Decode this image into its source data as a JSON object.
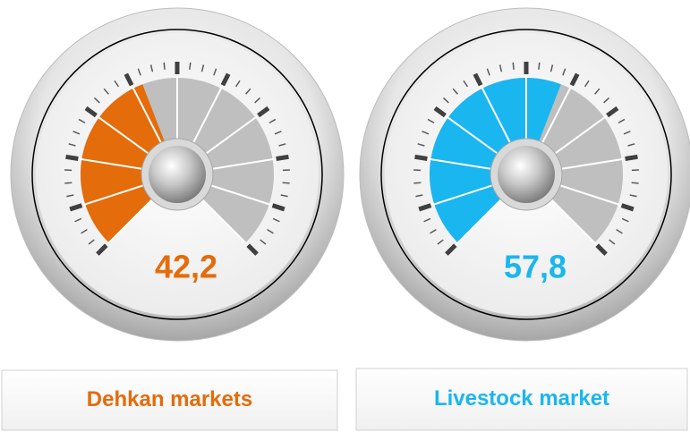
{
  "chart_data": {
    "type": "gauge",
    "categories": [
      "Dehkan markets",
      "Livestock market"
    ],
    "values": [
      42.2,
      57.8
    ],
    "value_labels": [
      "42,2",
      "57,8"
    ],
    "colors": [
      "#e46c0a",
      "#1ab6ef"
    ],
    "ylim": [
      0,
      100
    ]
  }
}
